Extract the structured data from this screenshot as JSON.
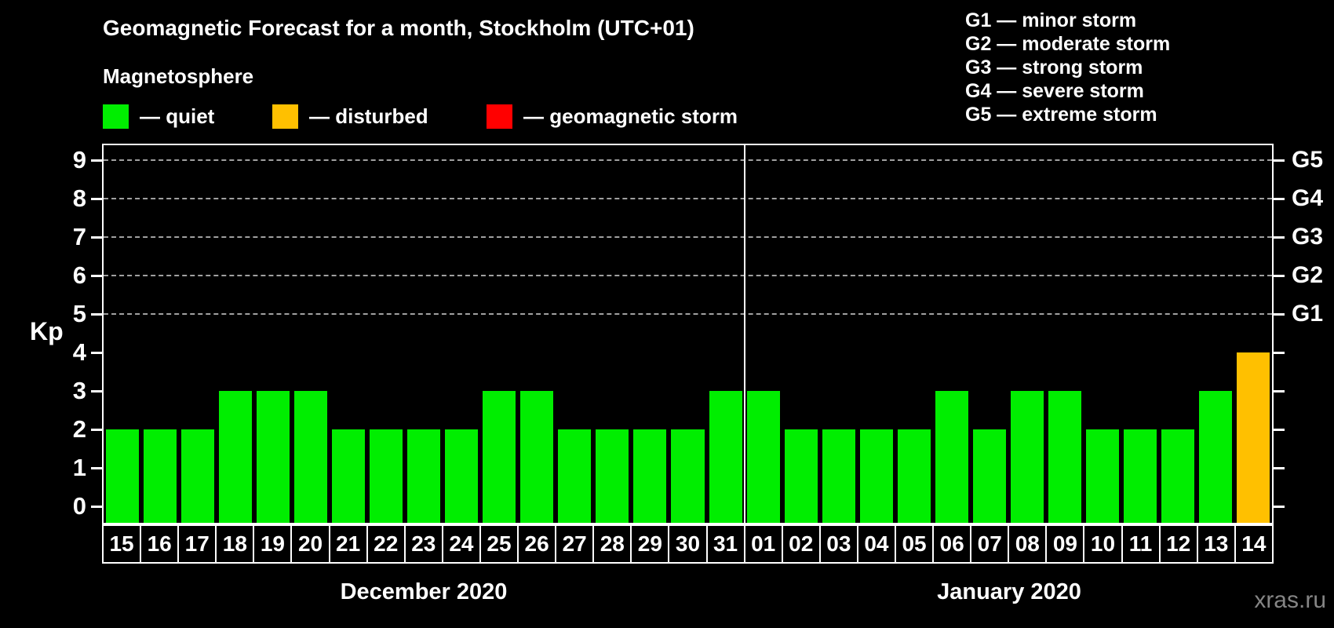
{
  "title": "Geomagnetic Forecast for a month, Stockholm (UTC+01)",
  "subtitle": "Magnetosphere",
  "legend": {
    "items": [
      {
        "key": "quiet",
        "label": "— quiet",
        "color": "#00ee00"
      },
      {
        "key": "disturbed",
        "label": "— disturbed",
        "color": "#ffc000"
      },
      {
        "key": "storm",
        "label": "— geomagnetic storm",
        "color": "#ff0000"
      }
    ]
  },
  "storm_scale_legend": [
    "G1 — minor storm",
    "G2 — moderate storm",
    "G3 — strong storm",
    "G4 — severe storm",
    "G5 — extreme storm"
  ],
  "watermark": "xras.ru",
  "chart_data": {
    "type": "bar",
    "title": "Geomagnetic Forecast for a month, Stockholm (UTC+01)",
    "ylabel": "Kp",
    "ylim": [
      0,
      9
    ],
    "yticks": [
      0,
      1,
      2,
      3,
      4,
      5,
      6,
      7,
      8,
      9
    ],
    "right_axis_labels": [
      {
        "label": "G1",
        "kp": 5
      },
      {
        "label": "G2",
        "kp": 6
      },
      {
        "label": "G3",
        "kp": 7
      },
      {
        "label": "G4",
        "kp": 8
      },
      {
        "label": "G5",
        "kp": 9
      }
    ],
    "gridlines_at": [
      5,
      6,
      7,
      8,
      9
    ],
    "grid": "dashed horizontal at G-levels only",
    "legend_position": "top",
    "months": [
      {
        "label": "December 2020",
        "days": 17
      },
      {
        "label": "January 2020",
        "days": 14
      }
    ],
    "categories": [
      "15",
      "16",
      "17",
      "18",
      "19",
      "20",
      "21",
      "22",
      "23",
      "24",
      "25",
      "26",
      "27",
      "28",
      "29",
      "30",
      "31",
      "01",
      "02",
      "03",
      "04",
      "05",
      "06",
      "07",
      "08",
      "09",
      "10",
      "11",
      "12",
      "13",
      "14"
    ],
    "values": [
      2,
      2,
      2,
      3,
      3,
      3,
      2,
      2,
      2,
      2,
      3,
      3,
      2,
      2,
      2,
      2,
      3,
      3,
      2,
      2,
      2,
      2,
      3,
      2,
      3,
      3,
      2,
      2,
      2,
      3,
      4
    ],
    "statuses": [
      "quiet",
      "quiet",
      "quiet",
      "quiet",
      "quiet",
      "quiet",
      "quiet",
      "quiet",
      "quiet",
      "quiet",
      "quiet",
      "quiet",
      "quiet",
      "quiet",
      "quiet",
      "quiet",
      "quiet",
      "quiet",
      "quiet",
      "quiet",
      "quiet",
      "quiet",
      "quiet",
      "quiet",
      "quiet",
      "quiet",
      "quiet",
      "quiet",
      "quiet",
      "quiet",
      "disturbed"
    ],
    "colors": {
      "quiet": "#00ee00",
      "disturbed": "#ffc000",
      "storm": "#ff0000"
    }
  }
}
